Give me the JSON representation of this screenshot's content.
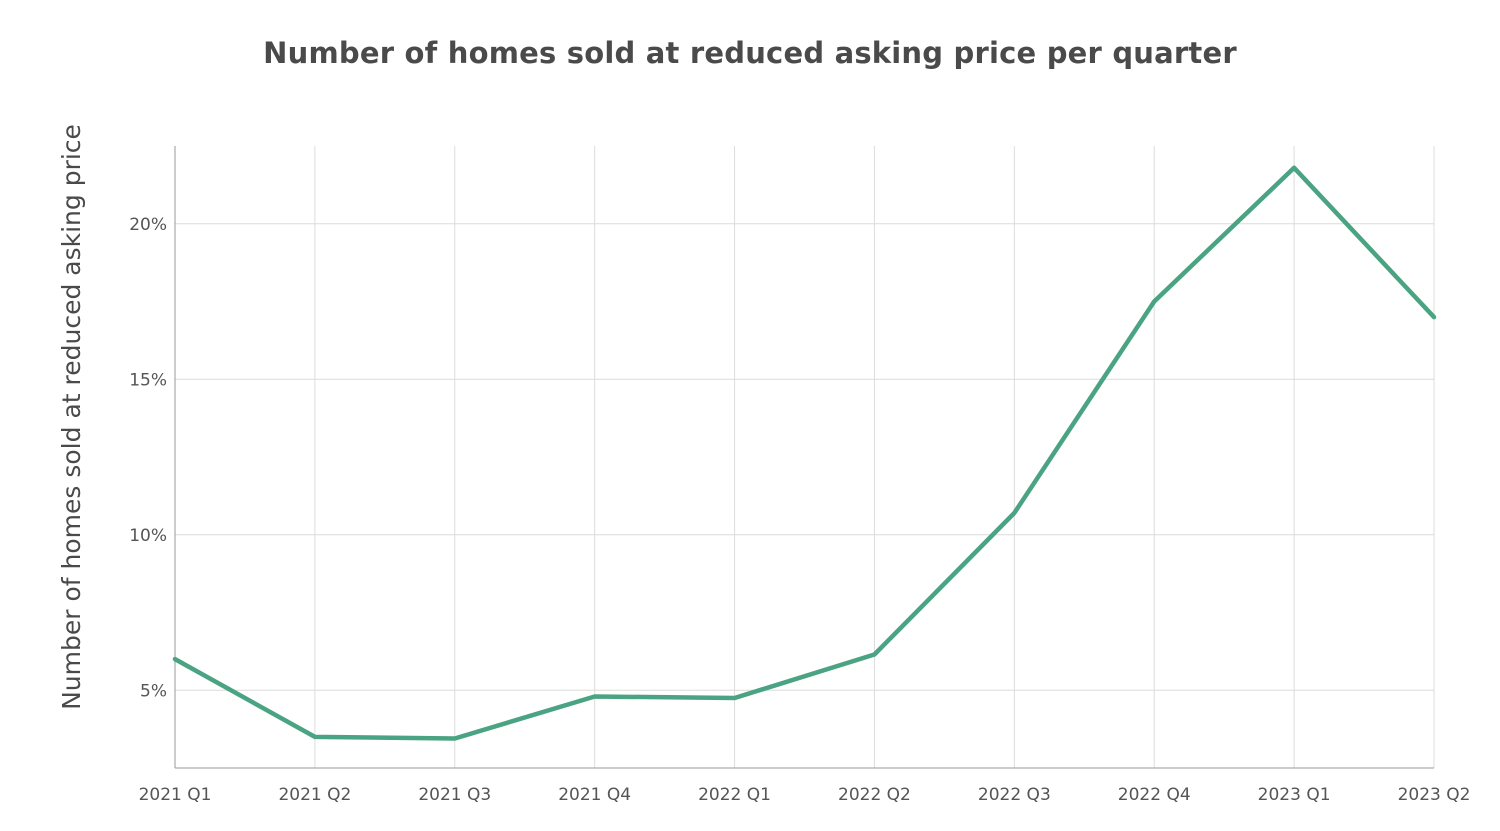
{
  "chart_data": {
    "type": "line",
    "title": "Number of homes sold at reduced asking price per quarter",
    "xlabel": "",
    "ylabel": "Number of homes sold at reduced asking price",
    "categories": [
      "2021 Q1",
      "2021 Q2",
      "2021 Q3",
      "2021 Q4",
      "2022 Q1",
      "2022 Q2",
      "2022 Q3",
      "2022 Q4",
      "2023 Q1",
      "2023 Q2"
    ],
    "series": [
      {
        "values": [
          6.0,
          3.5,
          3.45,
          4.8,
          4.75,
          6.15,
          10.7,
          17.5,
          21.8,
          17.0
        ]
      }
    ],
    "yticks": [
      5,
      10,
      15,
      20
    ],
    "ytick_labels": [
      "5%",
      "10%",
      "15%",
      "20%"
    ],
    "ylim": [
      2.5,
      22.5
    ],
    "grid": true,
    "line_color": "#4aa382",
    "grid_color": "#dcdcdc"
  }
}
